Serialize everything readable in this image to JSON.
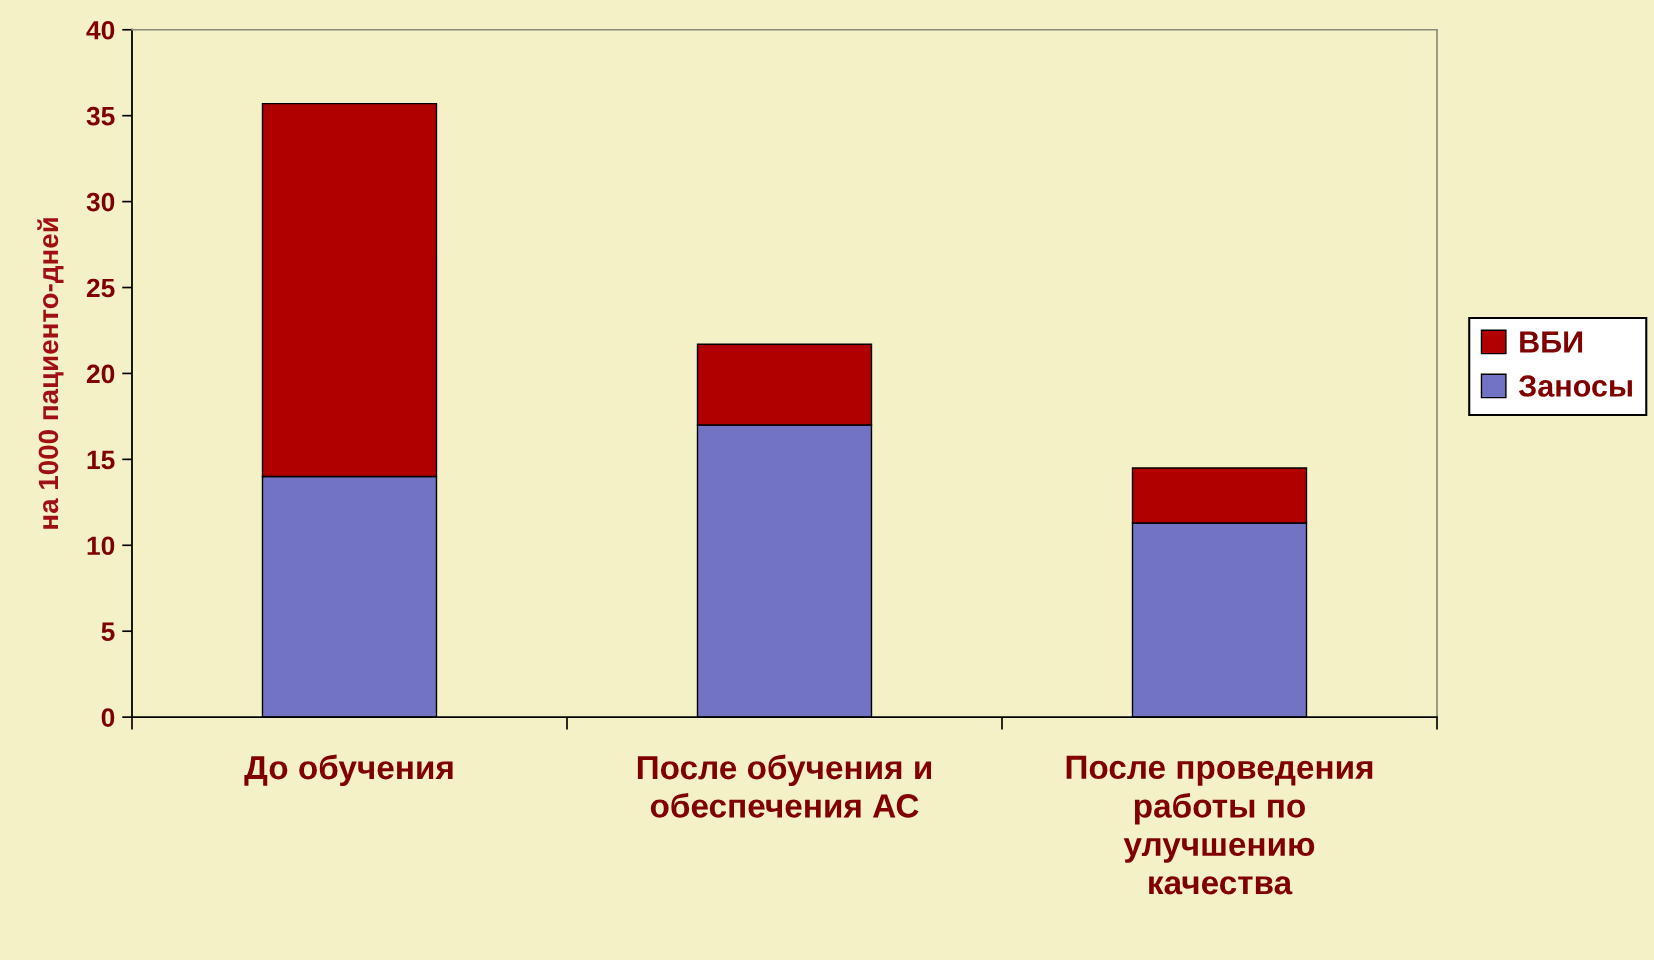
{
  "chart_data": {
    "type": "bar",
    "stacked": true,
    "ylabel": "на 1000 пациенто-дней",
    "categories": [
      "До обучения",
      "После обучения и обеспечения АС",
      "После проведения работы по улучшению качества"
    ],
    "series": [
      {
        "name": "Заносы",
        "color": "#7373c4",
        "values": [
          14.0,
          17.0,
          11.3
        ]
      },
      {
        "name": "ВБИ",
        "color": "#b00000",
        "values": [
          21.7,
          4.7,
          3.2
        ]
      }
    ],
    "ylim": [
      0,
      40
    ],
    "yticks": [
      0,
      5,
      10,
      15,
      20,
      25,
      30,
      35,
      40
    ],
    "grid": false,
    "legend": "right"
  }
}
